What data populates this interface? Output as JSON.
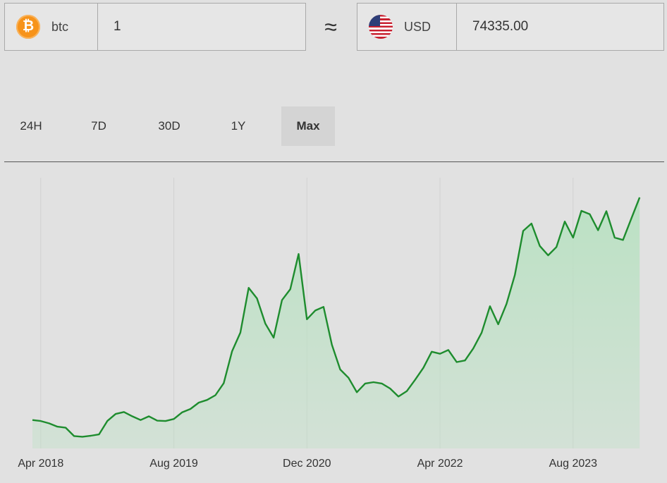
{
  "converter": {
    "from": {
      "currency": "btc",
      "amount": "1",
      "icon": "bitcoin-icon"
    },
    "approx_symbol": "≈",
    "to": {
      "currency": "USD",
      "amount": "74335.00",
      "icon": "us-flag-icon"
    }
  },
  "tabs": [
    {
      "label": "24H",
      "active": false
    },
    {
      "label": "7D",
      "active": false
    },
    {
      "label": "30D",
      "active": false
    },
    {
      "label": "1Y",
      "active": false
    },
    {
      "label": "Max",
      "active": true
    }
  ],
  "chart_data": {
    "type": "area",
    "title": "",
    "xlabel": "",
    "ylabel": "",
    "x_tick_labels": [
      "Apr 2018",
      "Aug 2019",
      "Dec 2020",
      "Apr 2022",
      "Aug 2023"
    ],
    "xlim": [
      -1,
      73
    ],
    "ylim": [
      0,
      75000
    ],
    "grid": "vertical",
    "line_color": "#1e8c2e",
    "fill_color": "#b9e1c2",
    "x": [
      -1,
      0,
      1,
      2,
      3,
      4,
      5,
      6,
      7,
      8,
      9,
      10,
      11,
      12,
      13,
      14,
      15,
      16,
      17,
      18,
      19,
      20,
      21,
      22,
      23,
      24,
      25,
      26,
      27,
      28,
      29,
      30,
      31,
      32,
      33,
      34,
      35,
      36,
      37,
      38,
      39,
      40,
      41,
      42,
      43,
      44,
      45,
      46,
      47,
      48,
      49,
      50,
      51,
      52,
      53,
      54,
      55,
      56,
      57,
      58,
      59,
      60,
      61,
      62,
      63,
      64,
      65,
      66,
      67,
      68,
      69,
      70,
      71,
      72
    ],
    "values": [
      8500,
      8200,
      7500,
      6500,
      6200,
      3700,
      3500,
      3800,
      4200,
      8200,
      10300,
      10900,
      9600,
      8500,
      9600,
      8300,
      8200,
      8800,
      10800,
      11800,
      13700,
      14500,
      15900,
      19500,
      29000,
      34600,
      48000,
      44800,
      37300,
      33100,
      44300,
      47600,
      58100,
      38600,
      41200,
      42300,
      31000,
      23600,
      21100,
      16800,
      19400,
      19800,
      19400,
      17900,
      15500,
      17100,
      20500,
      24100,
      28900,
      28300,
      29400,
      25800,
      26300,
      29900,
      34600,
      42500,
      37100,
      43200,
      51800,
      65000,
      67200,
      60500,
      57700,
      60200,
      67800,
      63000,
      71000,
      70000,
      65200,
      70900,
      63000,
      62300,
      68700,
      75000
    ]
  }
}
